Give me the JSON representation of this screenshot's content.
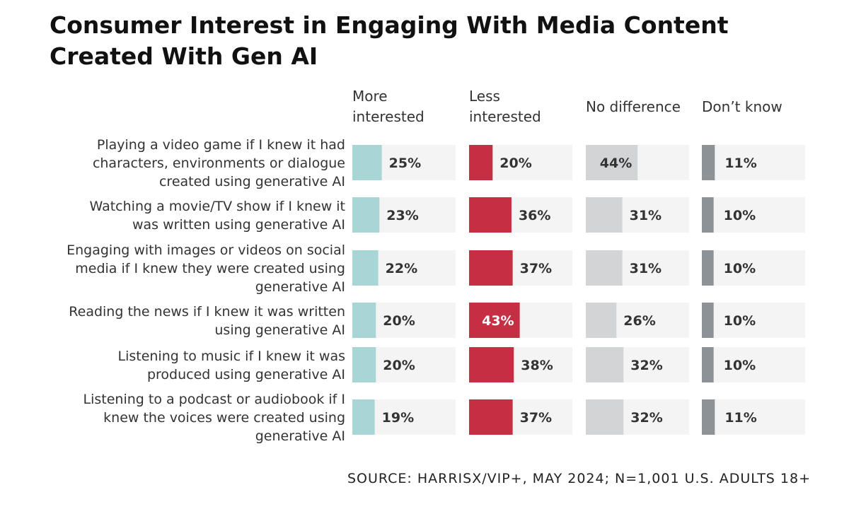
{
  "title": "Consumer Interest in Engaging With Media Content Created With Gen AI",
  "source": "SOURCE: HARRISX/VIP+, MAY 2024; N=1,001 U.S. ADULTS 18+",
  "colors": {
    "more_interested": "#a8d5d5",
    "less_interested": "#c62f43",
    "no_difference": "#d2d4d6",
    "dont_know": "#8d9297",
    "track": "#f4f4f4"
  },
  "chart_data": {
    "type": "bar",
    "title": "Consumer Interest in Engaging With Media Content Created With Gen AI",
    "unit": "%",
    "categories": [
      [
        "Playing a video game if I knew it had",
        "characters, environments or dialogue",
        "created using generative AI"
      ],
      [
        "Watching a movie/TV show if I knew it",
        "was written using generative AI"
      ],
      [
        "Engaging with images or videos on social",
        "media if I knew they were created using",
        "generative AI"
      ],
      [
        "Reading the news if I knew it was written",
        "using generative AI"
      ],
      [
        "Listening to music if I knew it was",
        "produced using generative AI"
      ],
      [
        "Listening to a podcast or audiobook if I",
        "knew the voices were created using",
        "generative AI"
      ]
    ],
    "series": [
      {
        "name": [
          "More",
          "interested"
        ],
        "values": [
          25,
          23,
          22,
          20,
          20,
          19
        ]
      },
      {
        "name": [
          "Less",
          "interested"
        ],
        "values": [
          20,
          36,
          37,
          43,
          38,
          37
        ]
      },
      {
        "name": [
          "No difference"
        ],
        "values": [
          44,
          31,
          31,
          26,
          32,
          32
        ]
      },
      {
        "name": [
          "Don’t know"
        ],
        "values": [
          11,
          10,
          10,
          10,
          10,
          11
        ]
      }
    ],
    "xlim": [
      0,
      50
    ],
    "legend": "top",
    "grid": false
  }
}
